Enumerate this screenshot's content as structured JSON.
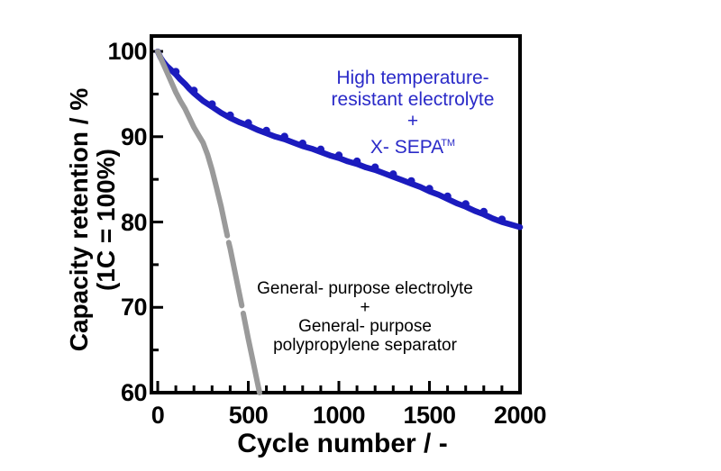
{
  "figure": {
    "background_color": "#ffffff",
    "axis_color": "#000000"
  },
  "chart_data": {
    "type": "line",
    "xlabel": "Cycle number / -",
    "ylabel_line1": "Capacity retention / %",
    "ylabel_line2": "(1C = 100%)",
    "xlim": [
      0,
      2000
    ],
    "ylim": [
      60,
      101.8
    ],
    "x_major_ticks": [
      0,
      500,
      1000,
      1500,
      2000
    ],
    "x_minor_tick_step": 100,
    "y_major_ticks": [
      60,
      70,
      80,
      90,
      100
    ],
    "y_minor_ticks": [
      65,
      75,
      85,
      95
    ],
    "grid": false,
    "legend_position": "inline-annotations",
    "series": [
      {
        "name": "High temperature-resistant electrolyte + X-SEPA(TM)",
        "color": "#1b1bbe",
        "line_width": 6.5,
        "marker": "bump-dots",
        "marker_dot_interval": 100,
        "points": [
          [
            0,
            100
          ],
          [
            15,
            99.3
          ],
          [
            30,
            98.8
          ],
          [
            50,
            98.3
          ],
          [
            75,
            97.8
          ],
          [
            100,
            97.3
          ],
          [
            125,
            96.7
          ],
          [
            150,
            96.2
          ],
          [
            175,
            95.6
          ],
          [
            200,
            95.1
          ],
          [
            250,
            94.2
          ],
          [
            300,
            93.5
          ],
          [
            350,
            92.8
          ],
          [
            400,
            92.2
          ],
          [
            450,
            91.7
          ],
          [
            500,
            91.3
          ],
          [
            550,
            90.8
          ],
          [
            600,
            90.4
          ],
          [
            650,
            90.0
          ],
          [
            700,
            89.7
          ],
          [
            750,
            89.3
          ],
          [
            800,
            88.9
          ],
          [
            850,
            88.6
          ],
          [
            900,
            88.2
          ],
          [
            950,
            87.8
          ],
          [
            1000,
            87.5
          ],
          [
            1050,
            87.1
          ],
          [
            1100,
            86.8
          ],
          [
            1150,
            86.4
          ],
          [
            1200,
            86.1
          ],
          [
            1250,
            85.7
          ],
          [
            1300,
            85.3
          ],
          [
            1350,
            84.9
          ],
          [
            1400,
            84.5
          ],
          [
            1450,
            84.1
          ],
          [
            1500,
            83.6
          ],
          [
            1550,
            83.2
          ],
          [
            1600,
            82.7
          ],
          [
            1650,
            82.2
          ],
          [
            1700,
            81.8
          ],
          [
            1750,
            81.3
          ],
          [
            1800,
            80.9
          ],
          [
            1850,
            80.4
          ],
          [
            1900,
            80.0
          ],
          [
            1950,
            79.7
          ],
          [
            2000,
            79.4
          ]
        ]
      },
      {
        "name": "General-purpose electrolyte + general-purpose polypropylene separator",
        "color": "#9a9a9a",
        "line_width": 6,
        "marker": "none",
        "segments": [
          [
            [
              0,
              100
            ],
            [
              25,
              98.8
            ],
            [
              50,
              97.6
            ],
            [
              75,
              96.4
            ],
            [
              100,
              95.2
            ],
            [
              125,
              94.2
            ],
            [
              150,
              93.3
            ],
            [
              175,
              92.2
            ],
            [
              200,
              91.1
            ],
            [
              225,
              90.2
            ],
            [
              250,
              89.3
            ],
            [
              275,
              87.9
            ],
            [
              300,
              86.1
            ],
            [
              325,
              84.0
            ],
            [
              350,
              81.8
            ],
            [
              375,
              79.3
            ],
            [
              384,
              78.4
            ]
          ],
          [
            [
              392,
              77.6
            ],
            [
              400,
              76.9
            ],
            [
              425,
              74.3
            ],
            [
              450,
              71.7
            ],
            [
              464,
              70.2
            ]
          ],
          [
            [
              472,
              69.3
            ],
            [
              500,
              66.3
            ],
            [
              525,
              63.8
            ],
            [
              550,
              61.2
            ],
            [
              562,
              60.0
            ]
          ]
        ]
      }
    ],
    "annotations": [
      {
        "id": "high-temp",
        "color": "#2a2ac8",
        "lines": [
          "High temperature-",
          "resistant electrolyte",
          "+",
          "X- SEPA"
        ],
        "superscript": "TM"
      },
      {
        "id": "general-purpose",
        "color": "#000000",
        "lines": [
          "General- purpose electrolyte",
          "+",
          "General- purpose",
          "polypropylene separator"
        ]
      }
    ]
  }
}
